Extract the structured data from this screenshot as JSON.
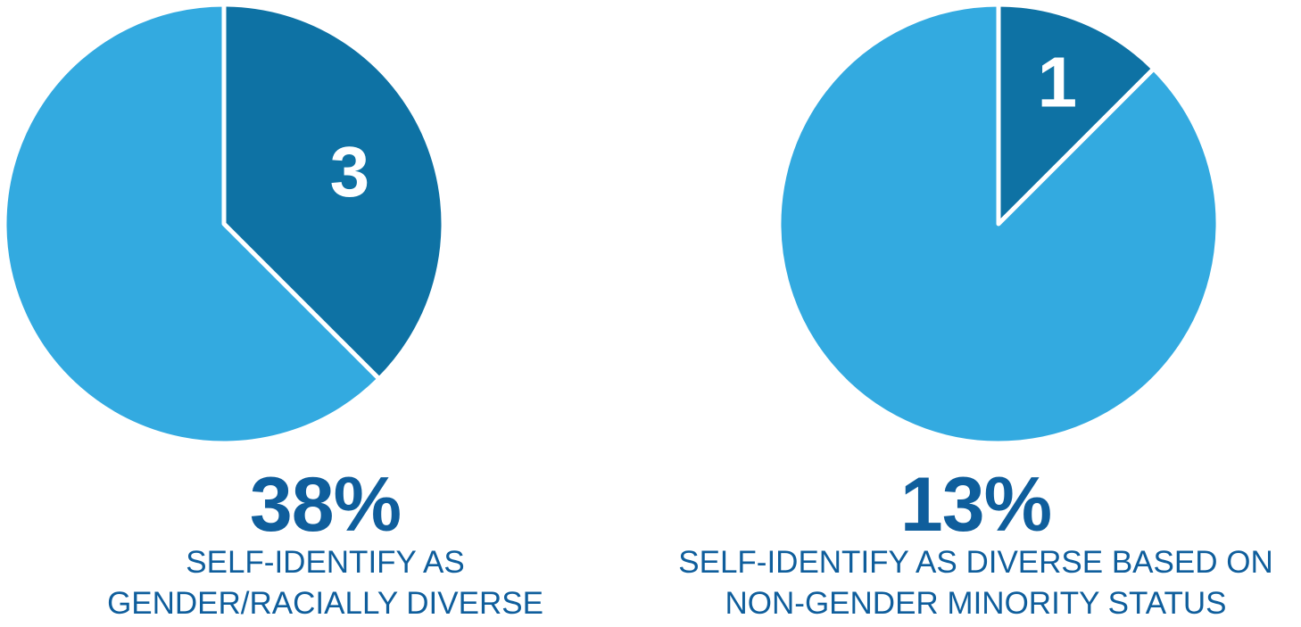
{
  "colors": {
    "highlight": "#0E72A4",
    "rest": "#33AAE0",
    "divider": "#FFFFFF",
    "text": "#0F5E9C"
  },
  "chart_data": [
    {
      "type": "pie",
      "slices": [
        {
          "value": 3,
          "label": "3",
          "color": "#0E72A4",
          "highlight": true
        },
        {
          "value": 5,
          "label": "",
          "color": "#33AAE0",
          "highlight": false
        }
      ],
      "start_angle_deg": 0,
      "direction": "clockwise",
      "percent_label": "38%",
      "caption": [
        "SELF-IDENTIFY AS",
        "GENDER/RACIALLY DIVERSE"
      ]
    },
    {
      "type": "pie",
      "slices": [
        {
          "value": 1,
          "label": "1",
          "color": "#0E72A4",
          "highlight": true
        },
        {
          "value": 7,
          "label": "",
          "color": "#33AAE0",
          "highlight": false
        }
      ],
      "start_angle_deg": 0,
      "direction": "clockwise",
      "percent_label": "13%",
      "caption": [
        "SELF-IDENTIFY AS DIVERSE BASED ON",
        "NON-GENDER MINORITY STATUS"
      ]
    }
  ]
}
